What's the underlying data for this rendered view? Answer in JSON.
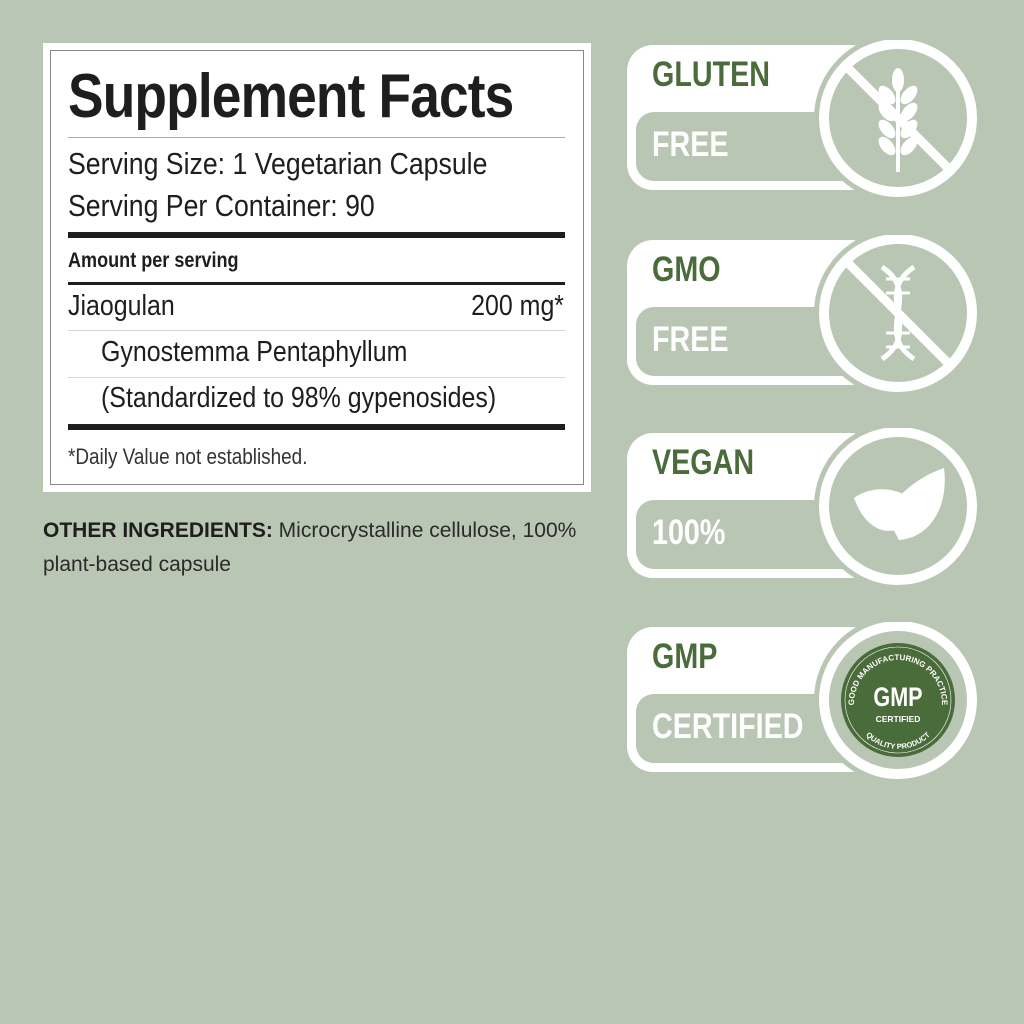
{
  "facts": {
    "title": "Supplement Facts",
    "serving_size": "Serving Size: 1 Vegetarian Capsule",
    "servings_per_container": "Serving Per Container: 90",
    "amount_header": "Amount per serving",
    "ingredient_name": "Jiaogulan",
    "ingredient_amount": "200 mg*",
    "ingredient_source": "Gynostemma Pentaphyllum",
    "ingredient_standardization": "(Standardized to 98% gypenosides)",
    "footnote": "*Daily Value not established."
  },
  "other_ingredients": {
    "label": "OTHER INGREDIENTS:",
    "text": " Microcrystalline cellulose, 100% plant-based capsule"
  },
  "badges": [
    {
      "top": "GLUTEN",
      "bottom": "FREE",
      "icon": "no-wheat-icon"
    },
    {
      "top": "GMO",
      "bottom": "FREE",
      "icon": "no-dna-icon"
    },
    {
      "top": "VEGAN",
      "bottom": "100%",
      "icon": "leaves-icon"
    },
    {
      "top": "GMP",
      "bottom": "CERTIFIED",
      "icon": "gmp-seal-icon"
    }
  ],
  "gmp_seal": {
    "arc_top": "GOOD MANUFACTURING PRACTICE",
    "main": "GMP",
    "sub": "CERTIFIED",
    "arc_bottom": "QUALITY PRODUCT"
  },
  "colors": {
    "background": "#b9c6b3",
    "accent_green": "#4a6b3a",
    "white": "#ffffff"
  }
}
